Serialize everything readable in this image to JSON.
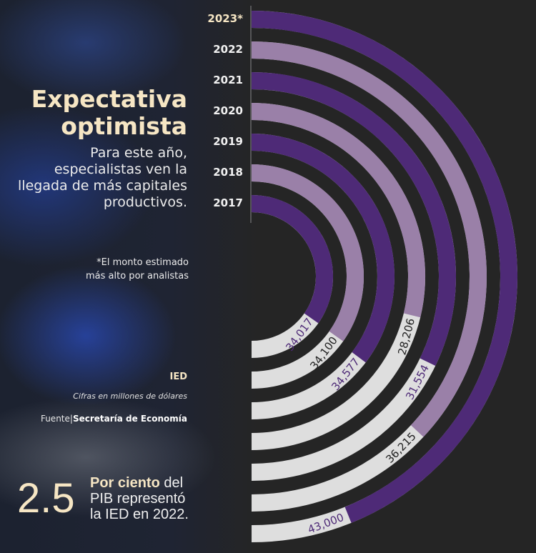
{
  "header": {
    "title_line1": "Expectativa",
    "title_line2": "optimista",
    "subtitle": "Para este año, especialistas ven la llegada de más capitales productivos."
  },
  "note": {
    "line1": "*El monto estimado",
    "line2": "más alto por analistas"
  },
  "legend": {
    "indicator": "IED",
    "units": "Cifras en millones de dólares",
    "source_label": "Fuente|",
    "source": "Secretaría de Economía"
  },
  "stat": {
    "value": "2.5",
    "highlight": "Por ciento",
    "text_a": " del",
    "text_b": "PIB representó",
    "text_c": "la IED en 2022."
  },
  "colors": {
    "background": "#252525",
    "purple": "#4e2a77",
    "light_purple": "#9a80a8",
    "track": "#dedede",
    "title": "#f6e6c4"
  },
  "chart_data": {
    "type": "radial-bar",
    "title": "Expectativa optimista",
    "units": "Cifras en millones de dólares",
    "categories": [
      "2023*",
      "2022",
      "2021",
      "2020",
      "2019",
      "2018",
      "2017"
    ],
    "values": [
      43000,
      36215,
      31554,
      28206,
      34577,
      34100,
      34017
    ],
    "value_labels": [
      "43,000",
      "36,215",
      "31,554",
      "28,206",
      "34,577",
      "34,100",
      "34,017"
    ],
    "ring_colors": [
      "#4e2a77",
      "#9a80a8",
      "#4e2a77",
      "#9a80a8",
      "#4e2a77",
      "#9a80a8",
      "#4e2a77"
    ],
    "label_colors": [
      "#4e2a77",
      "#222222",
      "#4e2a77",
      "#222222",
      "#4e2a77",
      "#222222",
      "#4e2a77"
    ]
  }
}
